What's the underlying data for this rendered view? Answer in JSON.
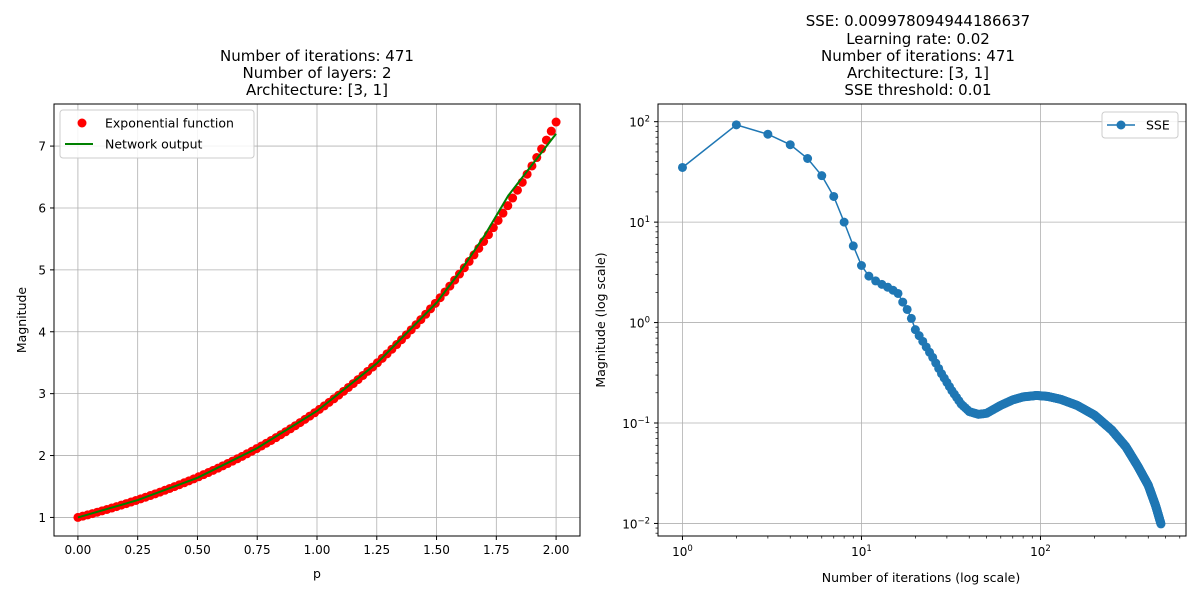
{
  "chart_data": [
    {
      "type": "scatter",
      "title_lines": [
        "Number of iterations: 471",
        "Number of layers: 2",
        "Architecture: [3, 1]"
      ],
      "xlabel": "p",
      "ylabel": "Magnitude",
      "xlim": [
        -0.1,
        2.1
      ],
      "ylim": [
        0.7,
        7.68
      ],
      "xticks": [
        "0.00",
        "0.25",
        "0.50",
        "0.75",
        "1.00",
        "1.25",
        "1.50",
        "1.75",
        "2.00"
      ],
      "yticks": [
        "1",
        "2",
        "3",
        "4",
        "5",
        "6",
        "7"
      ],
      "grid": true,
      "legend_position": "upper-left",
      "series": [
        {
          "name": "Exponential function",
          "kind": "markers",
          "color": "#ff0000",
          "x_start": 0.0,
          "x_end": 2.0,
          "count": 100,
          "function": "exp(p)"
        },
        {
          "name": "Network output",
          "kind": "line",
          "color": "#008000",
          "x": [
            0.0,
            0.25,
            0.5,
            0.75,
            1.0,
            1.25,
            1.5,
            1.6,
            1.7,
            1.8,
            1.9,
            2.0
          ],
          "y": [
            1.0,
            1.28,
            1.64,
            2.12,
            2.72,
            3.49,
            4.47,
            4.98,
            5.55,
            6.2,
            6.7,
            7.2
          ]
        }
      ]
    },
    {
      "type": "line",
      "title_lines": [
        "SSE: 0.009978094944186637",
        "Learning rate: 0.02",
        "Number of iterations: 471",
        "Architecture: [3, 1]",
        "SSE threshold: 0.01"
      ],
      "xlabel": "Number of iterations (log scale)",
      "ylabel": "Magnitude (log scale)",
      "xscale": "log",
      "yscale": "log",
      "xlim": [
        0.73,
        650
      ],
      "ylim": [
        0.0075,
        150
      ],
      "xticks": [
        {
          "value": 1,
          "base": "10",
          "exp": "0"
        },
        {
          "value": 10,
          "base": "10",
          "exp": "1"
        },
        {
          "value": 100,
          "base": "10",
          "exp": "2"
        }
      ],
      "yticks": [
        {
          "value": 0.01,
          "base": "10",
          "exp": "−2"
        },
        {
          "value": 0.1,
          "base": "10",
          "exp": "−1"
        },
        {
          "value": 1,
          "base": "10",
          "exp": "0"
        },
        {
          "value": 10,
          "base": "10",
          "exp": "1"
        },
        {
          "value": 100,
          "base": "10",
          "exp": "2"
        }
      ],
      "grid": true,
      "legend_position": "upper-right",
      "series": [
        {
          "name": "SSE",
          "color": "#1f77b4",
          "points": [
            [
              1,
              35
            ],
            [
              2,
              93
            ],
            [
              3,
              75
            ],
            [
              4,
              59
            ],
            [
              5,
              43
            ],
            [
              6,
              29
            ],
            [
              7,
              18
            ],
            [
              8,
              10
            ],
            [
              9,
              5.8
            ],
            [
              10,
              3.7
            ],
            [
              11,
              2.9
            ],
            [
              12,
              2.6
            ],
            [
              13,
              2.4
            ],
            [
              14,
              2.25
            ],
            [
              15,
              2.1
            ],
            [
              16,
              1.95
            ],
            [
              17,
              1.6
            ],
            [
              18,
              1.35
            ],
            [
              19,
              1.1
            ],
            [
              20,
              0.85
            ],
            [
              22,
              0.65
            ],
            [
              25,
              0.45
            ],
            [
              28,
              0.31
            ],
            [
              32,
              0.21
            ],
            [
              36,
              0.155
            ],
            [
              40,
              0.13
            ],
            [
              45,
              0.122
            ],
            [
              50,
              0.125
            ],
            [
              60,
              0.15
            ],
            [
              70,
              0.17
            ],
            [
              80,
              0.182
            ],
            [
              95,
              0.188
            ],
            [
              110,
              0.184
            ],
            [
              130,
              0.172
            ],
            [
              160,
              0.15
            ],
            [
              200,
              0.12
            ],
            [
              250,
              0.085
            ],
            [
              300,
              0.058
            ],
            [
              350,
              0.037
            ],
            [
              400,
              0.024
            ],
            [
              440,
              0.015
            ],
            [
              471,
              0.0099
            ]
          ]
        }
      ]
    }
  ]
}
